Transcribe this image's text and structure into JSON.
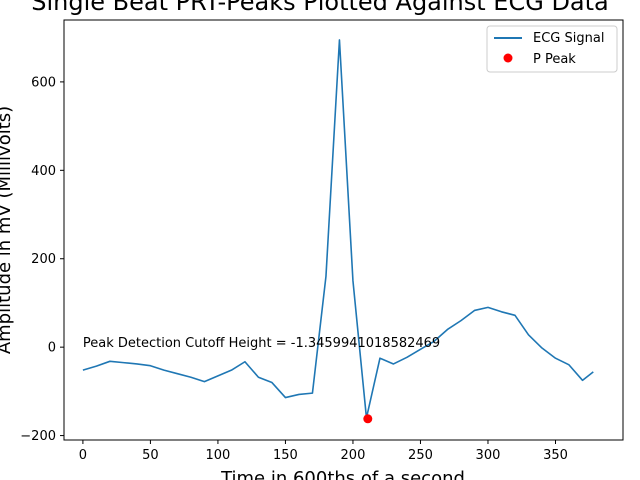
{
  "chart_data": {
    "type": "line",
    "title": "Single Beat PRT-Peaks Plotted Against ECG Data",
    "xlabel": "Time in 600ths of a second",
    "ylabel": "Amplitude in mV (Millivolts)",
    "xlim": [
      -14,
      400
    ],
    "ylim": [
      -210,
      740
    ],
    "xticks": [
      0,
      50,
      100,
      150,
      200,
      250,
      300,
      350
    ],
    "yticks": [
      -200,
      0,
      200,
      400,
      600
    ],
    "grid": false,
    "legend_position": "top-right",
    "series": [
      {
        "name": "ECG Signal",
        "kind": "line",
        "color": "#1f77b4",
        "x": [
          0,
          10,
          20,
          30,
          40,
          50,
          60,
          70,
          80,
          90,
          100,
          110,
          120,
          130,
          140,
          150,
          160,
          170,
          180,
          190,
          200,
          210,
          220,
          230,
          240,
          250,
          260,
          270,
          280,
          290,
          300,
          310,
          320,
          330,
          340,
          350,
          360,
          370,
          378
        ],
        "y": [
          -52,
          -43,
          -32,
          -35,
          -38,
          -42,
          -52,
          -60,
          -68,
          -78,
          -65,
          -52,
          -33,
          -68,
          -80,
          -114,
          -107,
          -104,
          160,
          695,
          150,
          -160,
          -25,
          -38,
          -23,
          -5,
          13,
          40,
          60,
          83,
          90,
          80,
          72,
          28,
          -2,
          -25,
          -40,
          -75,
          -56
        ]
      },
      {
        "name": "P Peak",
        "kind": "marker",
        "color": "#ff0000",
        "x": [
          211
        ],
        "y": [
          -162
        ]
      }
    ],
    "annotations": [
      {
        "text": "Peak Detection Cutoff Height = -1.3459941018582469",
        "x": 0,
        "y": 0
      }
    ]
  }
}
